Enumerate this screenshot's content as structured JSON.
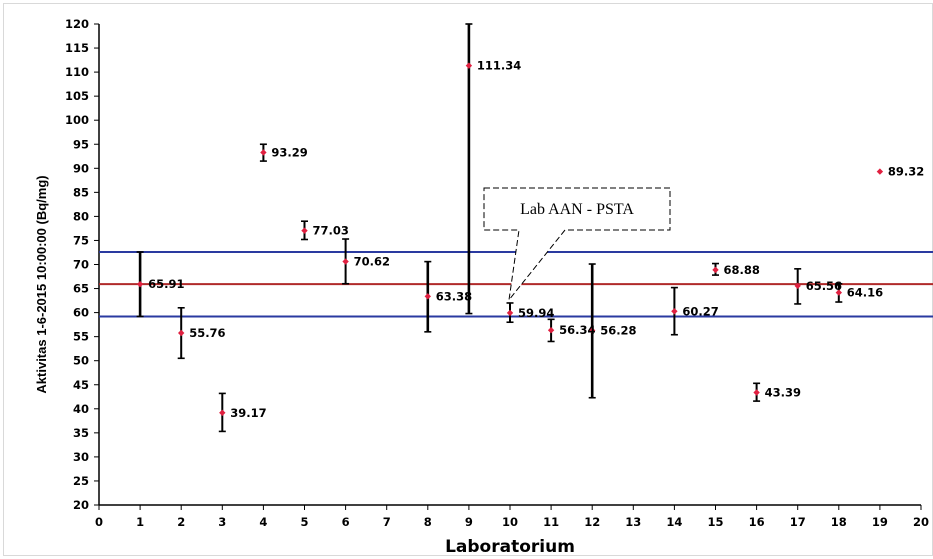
{
  "chart_data": {
    "type": "scatter",
    "xlabel": "Laboratorium",
    "ylabel": "Aktivitas 1-6-2015 10:00:00 (Bq/mg)",
    "xlim": [
      0,
      20
    ],
    "ylim": [
      20,
      120
    ],
    "x_ticks": [
      0,
      1,
      2,
      3,
      4,
      5,
      6,
      7,
      8,
      9,
      10,
      11,
      12,
      13,
      14,
      15,
      16,
      17,
      18,
      19,
      20
    ],
    "y_ticks": [
      20,
      25,
      30,
      35,
      40,
      45,
      50,
      55,
      60,
      65,
      70,
      75,
      80,
      85,
      90,
      95,
      100,
      105,
      110,
      115,
      120
    ],
    "marker_color": "#e02040",
    "errorbar_color": "#000000",
    "points": [
      {
        "x": 1,
        "y": 65.91,
        "label": "65.91",
        "err_low": 59.2,
        "err_high": 72.6
      },
      {
        "x": 2,
        "y": 55.76,
        "label": "55.76",
        "err_low": 50.5,
        "err_high": 61
      },
      {
        "x": 3,
        "y": 39.17,
        "label": "39.17",
        "err_low": 35.3,
        "err_high": 43.2
      },
      {
        "x": 4,
        "y": 93.29,
        "label": "93.29",
        "err_low": 91.5,
        "err_high": 95
      },
      {
        "x": 5,
        "y": 77.03,
        "label": "77.03",
        "err_low": 75.2,
        "err_high": 79
      },
      {
        "x": 6,
        "y": 70.62,
        "label": "70.62",
        "err_low": 66,
        "err_high": 75.3
      },
      {
        "x": 8,
        "y": 63.38,
        "label": "63.38",
        "err_low": 56,
        "err_high": 70.6
      },
      {
        "x": 9,
        "y": 111.34,
        "label": "111.34",
        "err_low": 59.8,
        "err_high": 120
      },
      {
        "x": 10,
        "y": 59.94,
        "label": "59.94",
        "err_low": 58,
        "err_high": 62
      },
      {
        "x": 11,
        "y": 56.34,
        "label": "56.34",
        "err_low": 54,
        "err_high": 58.6
      },
      {
        "x": 12,
        "y": 56.28,
        "label": "56.28",
        "err_low": 42.3,
        "err_high": 70.1
      },
      {
        "x": 14,
        "y": 60.27,
        "label": "60.27",
        "err_low": 55.4,
        "err_high": 65.2
      },
      {
        "x": 15,
        "y": 68.88,
        "label": "68.88",
        "err_low": 67.8,
        "err_high": 70.2
      },
      {
        "x": 16,
        "y": 43.39,
        "label": "43.39",
        "err_low": 41.6,
        "err_high": 45.3
      },
      {
        "x": 17,
        "y": 65.56,
        "label": "65.56",
        "err_low": 61.8,
        "err_high": 69.1
      },
      {
        "x": 18,
        "y": 64.16,
        "label": "64.16",
        "err_low": 62.2,
        "err_high": 66
      },
      {
        "x": 19,
        "y": 89.32,
        "label": "89.32",
        "err_low": null,
        "err_high": null
      }
    ],
    "reference_lines": [
      {
        "y": 72.6,
        "color": "#2a3aa0"
      },
      {
        "y": 65.91,
        "color": "#b02a2a"
      },
      {
        "y": 59.2,
        "color": "#2a3aa0"
      }
    ],
    "annotations": [
      {
        "text": "Lab AAN - PSTA",
        "target_x": 10,
        "target_y": 59.94
      }
    ],
    "grid": false
  }
}
